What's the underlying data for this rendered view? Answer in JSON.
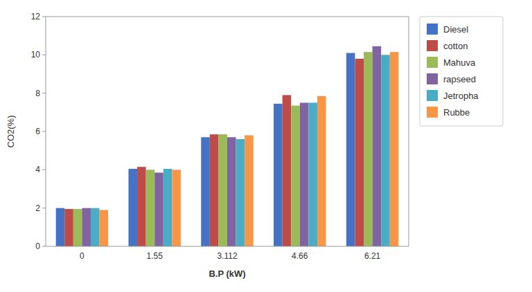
{
  "chart_data": {
    "type": "bar",
    "categories": [
      "0",
      "1.55",
      "3.112",
      "4.66",
      "6.21"
    ],
    "series": [
      {
        "name": "Diesel",
        "color": "#4472C4",
        "values": [
          2.0,
          4.05,
          5.7,
          7.45,
          10.1
        ]
      },
      {
        "name": "cotton",
        "color": "#BE4B48",
        "values": [
          1.95,
          4.15,
          5.85,
          7.9,
          9.8
        ]
      },
      {
        "name": "Mahuva",
        "color": "#9BBB59",
        "values": [
          1.95,
          4.0,
          5.85,
          7.35,
          10.15
        ]
      },
      {
        "name": "rapseed",
        "color": "#8064A2",
        "values": [
          2.0,
          3.85,
          5.7,
          7.5,
          10.45
        ]
      },
      {
        "name": "Jetropha",
        "color": "#4BACC6",
        "values": [
          2.0,
          4.05,
          5.6,
          7.5,
          10.0
        ]
      },
      {
        "name": "Rubbe",
        "color": "#F79646",
        "values": [
          1.9,
          4.0,
          5.8,
          7.85,
          10.15
        ]
      }
    ],
    "xlabel": "B.P (kW)",
    "ylabel": "CO2(%)",
    "ylim": [
      0,
      12
    ],
    "yticks": [
      0,
      2,
      4,
      6,
      8,
      10,
      12
    ],
    "grid": false,
    "legend": "right"
  }
}
